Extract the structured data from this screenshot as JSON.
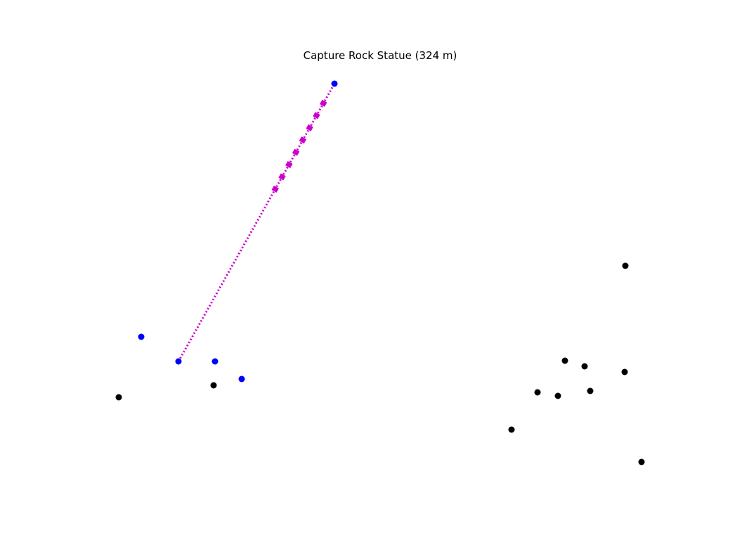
{
  "title": "Capture Rock Statue (324 m)",
  "colors": {
    "ally": "#0000ff",
    "enemy": "#000000",
    "path": "#cc00cc",
    "background": "#ffffff"
  },
  "units": {
    "allies": [
      {
        "id": "ally-1",
        "role": "selected"
      },
      {
        "id": "ally-2"
      },
      {
        "id": "ally-3"
      },
      {
        "id": "ally-4"
      }
    ],
    "target": {
      "id": "rock-statue-target",
      "role": "objective"
    },
    "enemies": [
      {
        "id": "enemy-1"
      },
      {
        "id": "enemy-2"
      },
      {
        "id": "enemy-3"
      },
      {
        "id": "enemy-4"
      },
      {
        "id": "enemy-5"
      },
      {
        "id": "enemy-6"
      },
      {
        "id": "enemy-7"
      },
      {
        "id": "enemy-8"
      },
      {
        "id": "enemy-9"
      },
      {
        "id": "enemy-10"
      }
    ]
  }
}
